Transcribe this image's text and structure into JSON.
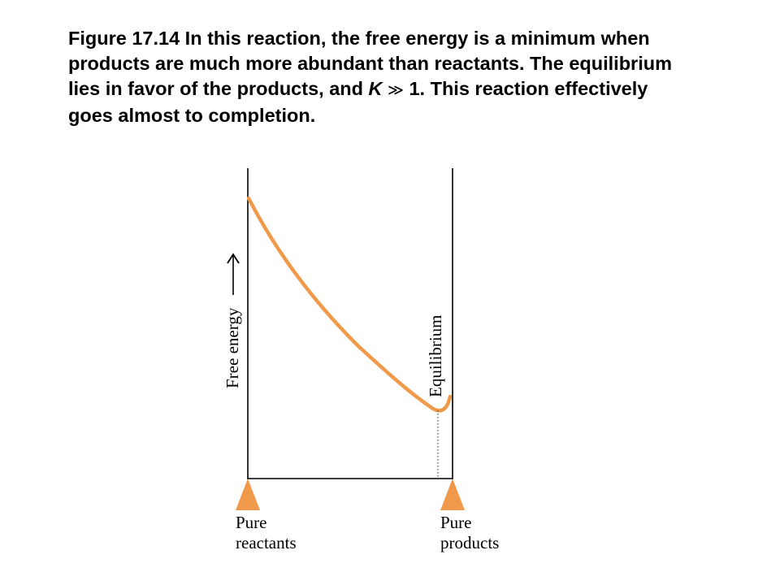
{
  "caption": {
    "part1": "Figure 17.14 In this reaction, the free energy is a minimum when products are much more abundant than reactants. The equilibrium lies in favor of the products, and ",
    "k_symbol": "K",
    "much_greater": "≫",
    "part2": " 1. This reaction effectively goes almost to completion."
  },
  "diagram": {
    "y_axis_label": "Free energy",
    "equilibrium_label": "Equilibrium",
    "left_marker": {
      "line1": "Pure",
      "line2": "reactants"
    },
    "right_marker": {
      "line1": "Pure",
      "line2": "products"
    },
    "colors": {
      "curve": "#f0994a",
      "markers": "#f0994a",
      "axes": "#000000"
    }
  }
}
